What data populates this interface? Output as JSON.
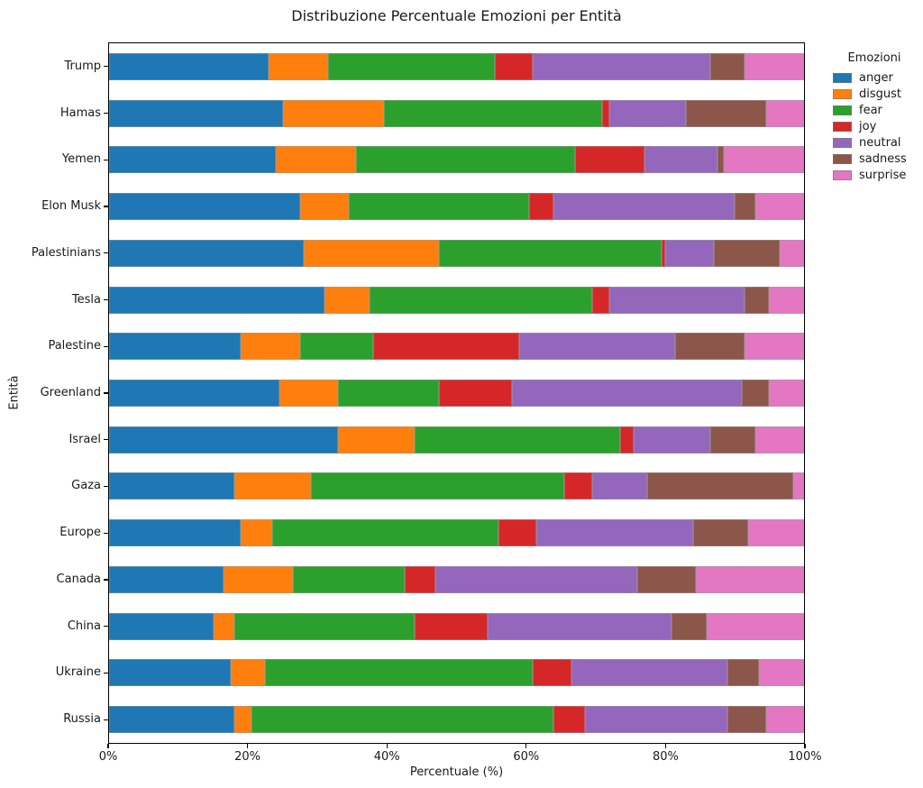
{
  "chart_data": {
    "type": "bar",
    "orientation": "horizontal",
    "stacked": true,
    "title": "Distribuzione Percentuale Emozioni per Entità",
    "xlabel": "Percentuale (%)",
    "ylabel": "Entità",
    "legend_title": "Emozioni",
    "legend_position": "outside-right-top",
    "grid": false,
    "xlim": [
      0,
      100
    ],
    "xtick_labels": [
      "0%",
      "20%",
      "40%",
      "60%",
      "80%",
      "100%"
    ],
    "xtick_values": [
      0,
      20,
      40,
      60,
      80,
      100
    ],
    "categories": [
      "Trump",
      "Hamas",
      "Yemen",
      "Elon Musk",
      "Palestinians",
      "Tesla",
      "Palestine",
      "Greenland",
      "Israel",
      "Gaza",
      "Europe",
      "Canada",
      "China",
      "Ukraine",
      "Russia"
    ],
    "series": [
      {
        "name": "anger",
        "color": "#1f77b4",
        "values": [
          23,
          25,
          24,
          27.5,
          28,
          31,
          19,
          24.5,
          33,
          18,
          19,
          16.5,
          15,
          17.5,
          18
        ]
      },
      {
        "name": "disgust",
        "color": "#ff7f0e",
        "values": [
          8.5,
          14.5,
          11.5,
          7,
          19.5,
          6.5,
          8.5,
          8.5,
          11,
          11,
          4.5,
          10,
          3,
          5,
          2.5
        ]
      },
      {
        "name": "fear",
        "color": "#2ca02c",
        "values": [
          24,
          31.5,
          31.5,
          26,
          32,
          32,
          10.5,
          14.5,
          29.5,
          36.5,
          32.5,
          16,
          26,
          38.5,
          43.5
        ]
      },
      {
        "name": "joy",
        "color": "#d62728",
        "values": [
          5.5,
          1,
          10,
          3.5,
          0.5,
          2.5,
          21,
          10.5,
          2,
          4,
          5.5,
          4.5,
          10.5,
          5.5,
          4.5
        ]
      },
      {
        "name": "neutral",
        "color": "#9467bd",
        "values": [
          25.5,
          11,
          10.5,
          26,
          7,
          19.5,
          22.5,
          33,
          11,
          8,
          22.5,
          29,
          26.5,
          22.5,
          20.5
        ]
      },
      {
        "name": "sadness",
        "color": "#8c564b",
        "values": [
          5,
          11.5,
          1,
          3,
          9.5,
          3.5,
          10,
          4,
          6.5,
          21,
          8,
          8.5,
          5,
          4.5,
          5.5
        ]
      },
      {
        "name": "surprise",
        "color": "#e377c2",
        "values": [
          8.5,
          5.5,
          11.5,
          7,
          3.5,
          5,
          8.5,
          5,
          7,
          1.5,
          8,
          15.5,
          14,
          6.5,
          5.5
        ]
      }
    ]
  }
}
